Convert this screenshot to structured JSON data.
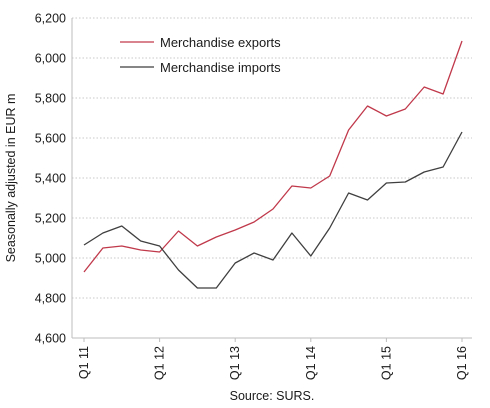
{
  "chart_data": {
    "type": "line",
    "title": "",
    "xlabel": "",
    "ylabel": "Seasonally adjusted in EUR m",
    "source": "Source: SURS.",
    "ylim": [
      4600,
      6200
    ],
    "y_ticks": [
      "4,600",
      "4,800",
      "5,000",
      "5,200",
      "5,400",
      "5,600",
      "5,800",
      "6,000",
      "6,200"
    ],
    "y_tick_values": [
      4600,
      4800,
      5000,
      5200,
      5400,
      5600,
      5800,
      6000,
      6200
    ],
    "x_ticks": [
      "Q1 11",
      "Q1 12",
      "Q1 13",
      "Q1 14",
      "Q1 15",
      "Q1 16"
    ],
    "x": [
      "Q1 11",
      "Q2 11",
      "Q3 11",
      "Q4 11",
      "Q1 12",
      "Q2 12",
      "Q3 12",
      "Q4 12",
      "Q1 13",
      "Q2 13",
      "Q3 13",
      "Q4 13",
      "Q1 14",
      "Q2 14",
      "Q3 14",
      "Q4 14",
      "Q1 15",
      "Q2 15",
      "Q3 15",
      "Q4 15",
      "Q1 16"
    ],
    "grid": "horizontal dotted",
    "legend": "top-left",
    "series": [
      {
        "name": "Merchandise exports",
        "color": "#c0394b",
        "values": [
          4930,
          5050,
          5060,
          5040,
          5030,
          5135,
          5060,
          5105,
          5140,
          5180,
          5245,
          5360,
          5350,
          5410,
          5640,
          5760,
          5710,
          5745,
          5855,
          5820,
          6085
        ]
      },
      {
        "name": "Merchandise imports",
        "color": "#3f3f3f",
        "values": [
          5065,
          5125,
          5160,
          5085,
          5060,
          4940,
          4850,
          4850,
          4975,
          5025,
          4990,
          5125,
          5010,
          5150,
          5325,
          5290,
          5375,
          5380,
          5430,
          5455,
          5630
        ]
      }
    ]
  }
}
